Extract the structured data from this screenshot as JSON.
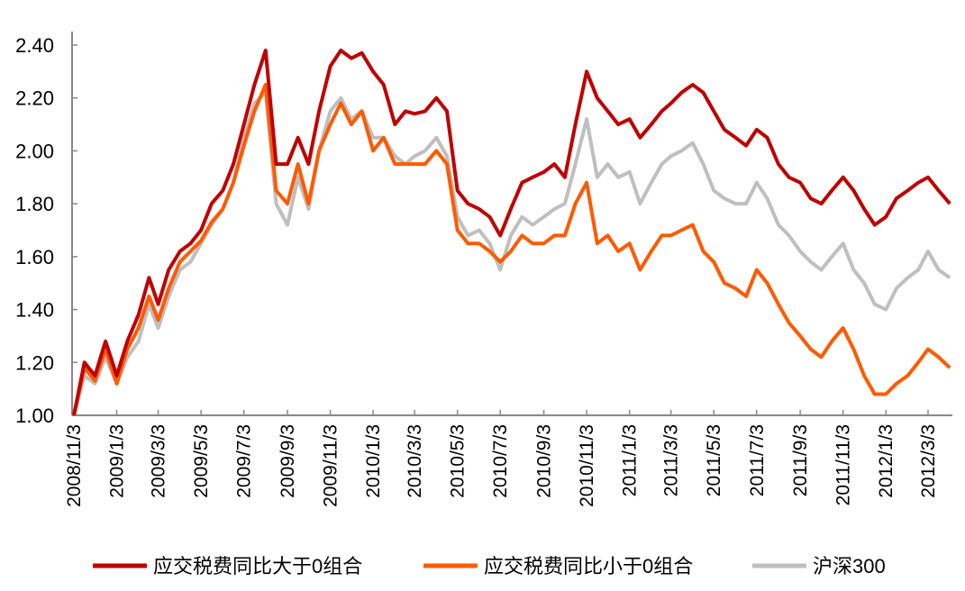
{
  "chart_data": {
    "type": "line",
    "title": "",
    "xlabel": "",
    "ylabel": "",
    "ylim": [
      1.0,
      2.4
    ],
    "yticks": [
      "1.00",
      "1.20",
      "1.40",
      "1.60",
      "1.80",
      "2.00",
      "2.20",
      "2.40"
    ],
    "xticks": [
      "2008/11/3",
      "2009/1/3",
      "2009/3/3",
      "2009/5/3",
      "2009/7/3",
      "2009/9/3",
      "2009/11/3",
      "2010/1/3",
      "2010/3/3",
      "2010/5/3",
      "2010/7/3",
      "2010/9/3",
      "2010/11/3",
      "2011/1/3",
      "2011/3/3",
      "2011/5/3",
      "2011/7/3",
      "2011/9/3",
      "2011/11/3",
      "2012/1/3",
      "2012/3/3"
    ],
    "grid": false,
    "legend_position": "bottom",
    "x": [
      "2008-11-03",
      "2008-11-18",
      "2008-12-03",
      "2008-12-18",
      "2009-01-03",
      "2009-01-18",
      "2009-02-03",
      "2009-02-18",
      "2009-03-03",
      "2009-03-18",
      "2009-04-03",
      "2009-04-18",
      "2009-05-03",
      "2009-05-18",
      "2009-06-03",
      "2009-06-18",
      "2009-07-03",
      "2009-07-18",
      "2009-08-03",
      "2009-08-18",
      "2009-09-03",
      "2009-09-18",
      "2009-10-03",
      "2009-10-18",
      "2009-11-03",
      "2009-11-18",
      "2009-12-03",
      "2009-12-18",
      "2010-01-03",
      "2010-01-18",
      "2010-02-03",
      "2010-02-18",
      "2010-03-03",
      "2010-03-18",
      "2010-04-03",
      "2010-04-18",
      "2010-05-03",
      "2010-05-18",
      "2010-06-03",
      "2010-06-18",
      "2010-07-03",
      "2010-07-18",
      "2010-08-03",
      "2010-08-18",
      "2010-09-03",
      "2010-09-18",
      "2010-10-03",
      "2010-10-18",
      "2010-11-03",
      "2010-11-18",
      "2010-12-03",
      "2010-12-18",
      "2011-01-03",
      "2011-01-18",
      "2011-02-03",
      "2011-02-18",
      "2011-03-03",
      "2011-03-18",
      "2011-04-03",
      "2011-04-18",
      "2011-05-03",
      "2011-05-18",
      "2011-06-03",
      "2011-06-18",
      "2011-07-03",
      "2011-07-18",
      "2011-08-03",
      "2011-08-18",
      "2011-09-03",
      "2011-09-18",
      "2011-10-03",
      "2011-10-18",
      "2011-11-03",
      "2011-11-18",
      "2011-12-03",
      "2011-12-18",
      "2012-01-03",
      "2012-01-18",
      "2012-02-03",
      "2012-02-18",
      "2012-03-03",
      "2012-03-18",
      "2012-04-03"
    ],
    "series": [
      {
        "name": "应交税费同比大于0组合",
        "color": "#C00000",
        "values": [
          1.0,
          1.2,
          1.15,
          1.28,
          1.15,
          1.28,
          1.38,
          1.52,
          1.42,
          1.55,
          1.62,
          1.65,
          1.7,
          1.8,
          1.85,
          1.95,
          2.1,
          2.25,
          2.38,
          1.95,
          1.95,
          2.05,
          1.95,
          2.15,
          2.32,
          2.38,
          2.35,
          2.37,
          2.3,
          2.25,
          2.1,
          2.15,
          2.14,
          2.15,
          2.2,
          2.15,
          1.85,
          1.8,
          1.78,
          1.75,
          1.68,
          1.78,
          1.88,
          1.9,
          1.92,
          1.95,
          1.9,
          2.1,
          2.3,
          2.2,
          2.15,
          2.1,
          2.12,
          2.05,
          2.1,
          2.15,
          2.18,
          2.22,
          2.25,
          2.22,
          2.15,
          2.08,
          2.05,
          2.02,
          2.08,
          2.05,
          1.95,
          1.9,
          1.88,
          1.82,
          1.8,
          1.85,
          1.9,
          1.85,
          1.78,
          1.72,
          1.75,
          1.82,
          1.85,
          1.88,
          1.9,
          1.85,
          1.8
        ]
      },
      {
        "name": "应交税费同比小于0组合",
        "color": "#FF5A00",
        "values": [
          1.0,
          1.18,
          1.13,
          1.25,
          1.12,
          1.25,
          1.33,
          1.45,
          1.36,
          1.48,
          1.58,
          1.62,
          1.66,
          1.73,
          1.78,
          1.88,
          2.02,
          2.15,
          2.25,
          1.85,
          1.8,
          1.95,
          1.8,
          2.0,
          2.1,
          2.18,
          2.1,
          2.15,
          2.0,
          2.05,
          1.95,
          1.95,
          1.95,
          1.95,
          2.0,
          1.95,
          1.7,
          1.65,
          1.65,
          1.62,
          1.58,
          1.62,
          1.68,
          1.65,
          1.65,
          1.68,
          1.68,
          1.8,
          1.88,
          1.65,
          1.68,
          1.62,
          1.65,
          1.55,
          1.62,
          1.68,
          1.68,
          1.7,
          1.72,
          1.62,
          1.58,
          1.5,
          1.48,
          1.45,
          1.55,
          1.5,
          1.42,
          1.35,
          1.3,
          1.25,
          1.22,
          1.28,
          1.33,
          1.25,
          1.15,
          1.08,
          1.08,
          1.12,
          1.15,
          1.2,
          1.25,
          1.22,
          1.18
        ]
      },
      {
        "name": "沪深300",
        "color": "#BFBFBF",
        "values": [
          1.0,
          1.15,
          1.12,
          1.22,
          1.12,
          1.22,
          1.28,
          1.42,
          1.33,
          1.45,
          1.55,
          1.58,
          1.65,
          1.72,
          1.78,
          1.88,
          2.05,
          2.18,
          2.22,
          1.8,
          1.72,
          1.9,
          1.78,
          2.0,
          2.15,
          2.2,
          2.12,
          2.15,
          2.05,
          2.05,
          1.98,
          1.95,
          1.98,
          2.0,
          2.05,
          1.98,
          1.75,
          1.68,
          1.7,
          1.65,
          1.55,
          1.68,
          1.75,
          1.72,
          1.75,
          1.78,
          1.8,
          1.95,
          2.12,
          1.9,
          1.95,
          1.9,
          1.92,
          1.8,
          1.88,
          1.95,
          1.98,
          2.0,
          2.03,
          1.95,
          1.85,
          1.82,
          1.8,
          1.8,
          1.88,
          1.82,
          1.72,
          1.68,
          1.62,
          1.58,
          1.55,
          1.6,
          1.65,
          1.55,
          1.5,
          1.42,
          1.4,
          1.48,
          1.52,
          1.55,
          1.62,
          1.55,
          1.52
        ]
      }
    ]
  }
}
